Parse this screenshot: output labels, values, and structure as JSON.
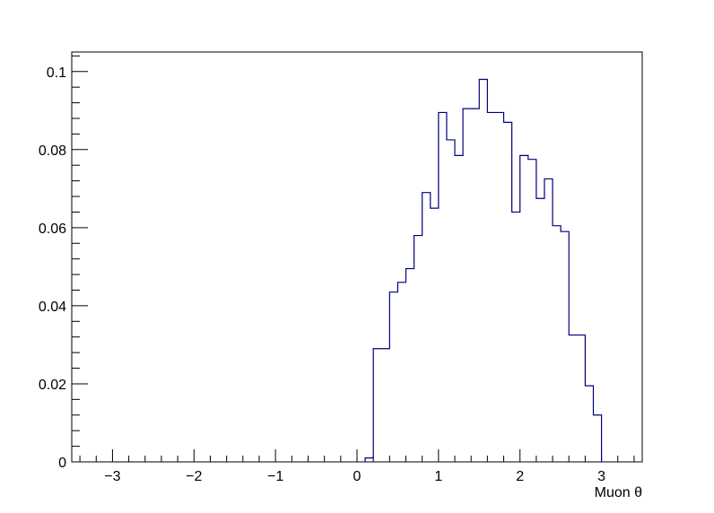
{
  "chart_data": {
    "type": "histogram",
    "title": "",
    "xlabel": "Muon θ",
    "ylabel": "",
    "xlim": [
      -3.5,
      3.5
    ],
    "ylim": [
      0,
      0.105
    ],
    "grid": false,
    "legend": "none",
    "line_color": "#000080",
    "x_ticks": [
      -3,
      -2,
      -1,
      0,
      1,
      2,
      3
    ],
    "x_tick_labels": [
      "−3",
      "−2",
      "−1",
      "0",
      "1",
      "2",
      "3"
    ],
    "y_ticks": [
      0,
      0.02,
      0.04,
      0.06,
      0.08,
      0.1
    ],
    "y_tick_labels": [
      "0",
      "0.02",
      "0.04",
      "0.06",
      "0.08",
      "0.1"
    ],
    "bins": {
      "edges": [
        0.1,
        0.2,
        0.4,
        0.5,
        0.6,
        0.7,
        0.8,
        0.9,
        1.0,
        1.1,
        1.2,
        1.3,
        1.5,
        1.6,
        1.8,
        1.9,
        2.0,
        2.1,
        2.2,
        2.3,
        2.4,
        2.5,
        2.6,
        2.8,
        2.9,
        3.0
      ],
      "values": [
        0.001,
        0.029,
        0.0435,
        0.046,
        0.0495,
        0.058,
        0.069,
        0.065,
        0.0895,
        0.0825,
        0.0785,
        0.0905,
        0.098,
        0.0895,
        0.087,
        0.064,
        0.0785,
        0.0775,
        0.0675,
        0.0725,
        0.0605,
        0.059,
        0.0325,
        0.0195,
        0.012
      ]
    }
  }
}
